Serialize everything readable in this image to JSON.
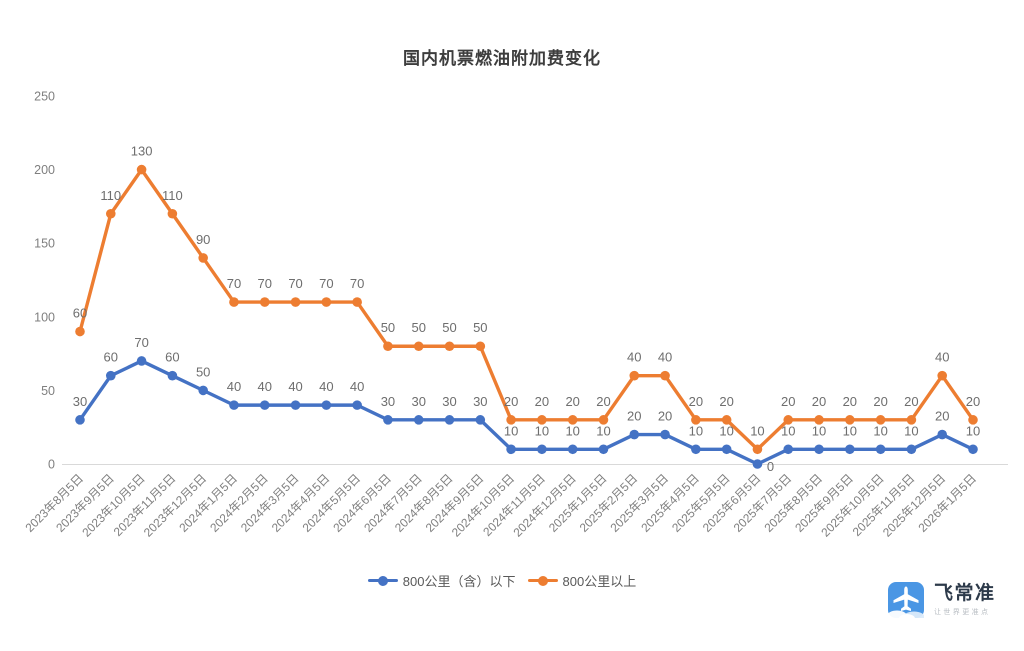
{
  "title": "国内机票燃油附加费变化",
  "chart_data": {
    "type": "line",
    "stacked": true,
    "title": "国内机票燃油附加费变化",
    "categories": [
      "2023年8月5日",
      "2023年9月5日",
      "2023年10月5日",
      "2023年11月5日",
      "2023年12月5日",
      "2024年1月5日",
      "2024年2月5日",
      "2024年3月5日",
      "2024年4月5日",
      "2024年5月5日",
      "2024年6月5日",
      "2024年7月5日",
      "2024年8月5日",
      "2024年9月5日",
      "2024年10月5日",
      "2024年11月5日",
      "2024年12月5日",
      "2025年1月5日",
      "2025年2月5日",
      "2025年3月5日",
      "2025年4月5日",
      "2025年5月5日",
      "2025年6月5日",
      "2025年7月5日",
      "2025年8月5日",
      "2025年9月5日",
      "2025年10月5日",
      "2025年11月5日",
      "2025年12月5日",
      "2026年1月5日"
    ],
    "series": [
      {
        "name": "800公里（含）以下",
        "color": "#4472C4",
        "values": [
          30,
          60,
          70,
          60,
          50,
          40,
          40,
          40,
          40,
          40,
          30,
          30,
          30,
          30,
          10,
          10,
          10,
          10,
          20,
          20,
          10,
          10,
          0,
          10,
          10,
          10,
          10,
          10,
          20,
          10
        ]
      },
      {
        "name": "800公里以上",
        "color": "#ED7D31",
        "values": [
          60,
          110,
          130,
          110,
          90,
          70,
          70,
          70,
          70,
          70,
          50,
          50,
          50,
          50,
          20,
          20,
          20,
          20,
          40,
          40,
          20,
          20,
          10,
          20,
          20,
          20,
          20,
          20,
          40,
          20
        ]
      }
    ],
    "ylim": [
      0,
      250
    ],
    "yticks": [
      0,
      50,
      100,
      150,
      200,
      250
    ],
    "grid": false,
    "data_labels": true,
    "legend_position": "bottom",
    "xlabel": "",
    "ylabel": ""
  },
  "colors": {
    "axis_line": "#d9d9d9",
    "axis_text": "#7f7f7f",
    "data_label_text": "#6e6e6e",
    "logo_blue": "#4a96e4"
  },
  "logo": {
    "name": "飞常准",
    "tagline": "让世界更准点"
  }
}
